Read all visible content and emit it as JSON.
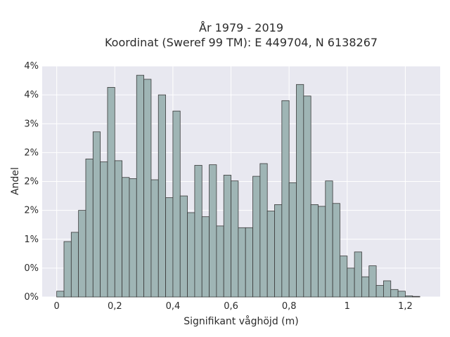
{
  "chart_data": {
    "type": "bar",
    "title": "År 1979 - 2019",
    "subtitle": "Koordinat (Sweref 99 TM): E 449704, N 6138267",
    "xlabel": "Signifikant våghöjd (m)",
    "ylabel": "Andel",
    "xlim": [
      -0.05,
      1.32
    ],
    "ylim": [
      0,
      0.04
    ],
    "x_ticks": [
      0,
      0.2,
      0.4,
      0.6,
      0.8,
      1.0,
      1.2
    ],
    "x_tick_labels": [
      "0",
      "0,2",
      "0,4",
      "0,6",
      "0,8",
      "1",
      "1,2"
    ],
    "y_ticks": [
      0,
      0.005,
      0.01,
      0.015,
      0.02,
      0.025,
      0.03,
      0.035,
      0.04
    ],
    "y_tick_labels": [
      "0%",
      "0%",
      "1%",
      "2%",
      "2%",
      "2%",
      "3%",
      "4%",
      "4%"
    ],
    "bin_width": 0.025,
    "bin_start": 0.0,
    "values": [
      0.001,
      0.0096,
      0.0112,
      0.015,
      0.0239,
      0.0286,
      0.0234,
      0.0363,
      0.0236,
      0.0207,
      0.0205,
      0.0384,
      0.0377,
      0.0203,
      0.035,
      0.0172,
      0.0322,
      0.0175,
      0.0146,
      0.0228,
      0.0139,
      0.0229,
      0.0123,
      0.0211,
      0.0201,
      0.012,
      0.012,
      0.0209,
      0.0231,
      0.0149,
      0.016,
      0.034,
      0.0198,
      0.0368,
      0.0348,
      0.016,
      0.0157,
      0.0201,
      0.0162,
      0.0071,
      0.005,
      0.0078,
      0.0035,
      0.0054,
      0.002,
      0.0028,
      0.0013,
      0.001,
      0.0002,
      0.0001
    ],
    "grid": true,
    "bar_color": "#9fb5b5",
    "edge_color": "#3a3a3a",
    "background_color": "#e8e8f0"
  }
}
